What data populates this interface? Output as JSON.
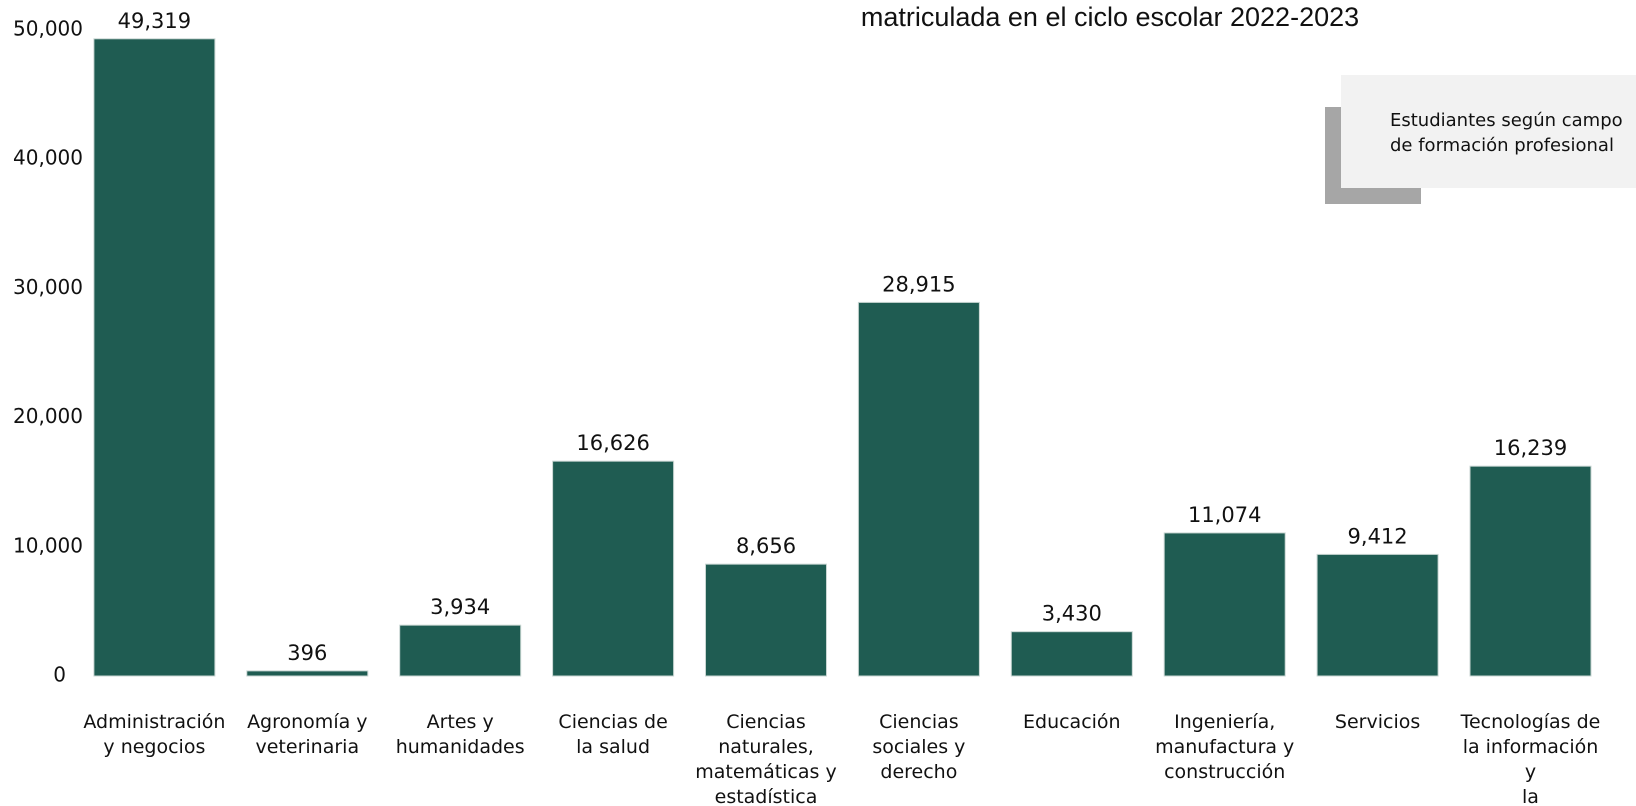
{
  "chart_data": {
    "type": "bar",
    "title": "matriculada en el ciclo escolar 2022-2023",
    "legend_text": "Estudiantes según campo\nde formación profesional",
    "categories": [
      "Administración\ny negocios",
      "Agronomía y\nveterinaria",
      "Artes y\nhumanidades",
      "Ciencias de\nla salud",
      "Ciencias\nnaturales,\nmatemáticas y\nestadística",
      "Ciencias\nsociales y\nderecho",
      "Educación",
      "Ingeniería,\nmanufactura y\nconstrucción",
      "Servicios",
      "Tecnologías de\nla información y\nla comunicación"
    ],
    "values": [
      49319,
      396,
      3934,
      16626,
      8656,
      28915,
      3430,
      11074,
      9412,
      16239
    ],
    "value_labels": [
      "49,319",
      "396",
      "3,934",
      "16,626",
      "8,656",
      "28,915",
      "3,430",
      "11,074",
      "9,412",
      "16,239"
    ],
    "color": "#1f5c52",
    "ylim": [
      0,
      50000
    ],
    "yticks": [
      0,
      {
        "value": 10000,
        "label": "10,000"
      },
      {
        "value": 20000,
        "label": "20,000"
      },
      {
        "value": 30000,
        "label": "30,000"
      },
      {
        "value": 40000,
        "label": "40,000"
      },
      {
        "value": 50000,
        "label": "50,000"
      }
    ],
    "grid": false
  }
}
